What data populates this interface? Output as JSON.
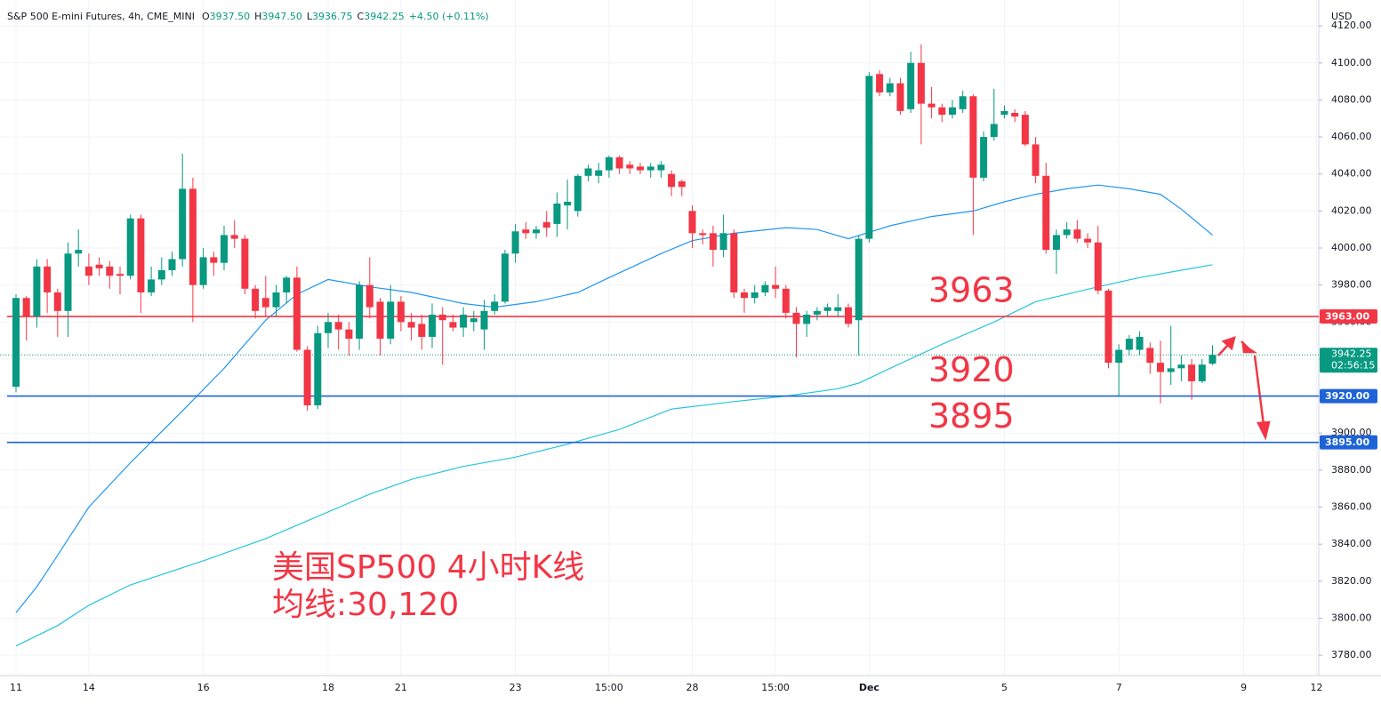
{
  "chart_data": {
    "type": "candlestick",
    "title": "S&P 500 E-mini Futures, 4h, CME_MINI",
    "ohlc_labels": [
      {
        "key": "O",
        "value": "3937.50"
      },
      {
        "key": "H",
        "value": "3947.50"
      },
      {
        "key": "L",
        "value": "3936.75"
      },
      {
        "key": "C",
        "value": "3942.25"
      }
    ],
    "change": "+4.50 (+0.11%)",
    "currency": "USD",
    "categories": [
      "11",
      null,
      null,
      null,
      null,
      null,
      null,
      "14",
      null,
      null,
      null,
      null,
      null,
      null,
      null,
      null,
      null,
      null,
      "16",
      null,
      null,
      null,
      null,
      null,
      null,
      null,
      null,
      null,
      null,
      null,
      "18",
      null,
      null,
      null,
      null,
      null,
      null,
      "21",
      null,
      null,
      null,
      null,
      null,
      null,
      null,
      null,
      null,
      null,
      "23",
      null,
      null,
      null,
      null,
      null,
      null,
      null,
      null,
      "15:00",
      null,
      null,
      null,
      null,
      null,
      null,
      null,
      "28",
      null,
      null,
      null,
      null,
      null,
      null,
      null,
      "15:00",
      null,
      null,
      null,
      null,
      null,
      null,
      null,
      null,
      "Dec",
      null,
      null,
      null,
      null,
      null,
      null,
      null,
      null,
      null,
      null,
      null,
      null,
      "5",
      null,
      null,
      null,
      null,
      null,
      null,
      null,
      null,
      null,
      null,
      "7",
      null,
      null,
      null,
      null,
      null,
      null,
      null,
      null,
      null,
      null,
      null,
      "9",
      null,
      null,
      null,
      null,
      null,
      null,
      "12"
    ],
    "open": [
      3925,
      3973,
      3963,
      3990,
      3976,
      3966,
      3997,
      3990,
      3991,
      3990,
      3986,
      3985,
      4016,
      3976,
      3983,
      3988,
      3994,
      4032,
      3980,
      3995,
      3992,
      4007,
      4005,
      3978,
      3973,
      3968,
      3976,
      3984,
      3945,
      3915,
      3954,
      3960,
      3956,
      3951,
      3980,
      3971,
      3951,
      3971,
      3960,
      3959,
      3952,
      3964,
      3960,
      3957,
      3960,
      3956,
      3966,
      3971,
      3997,
      4010,
      4008,
      4014,
      4013,
      4023,
      4020,
      4039,
      4039,
      4042,
      4049,
      4045,
      4044,
      4042,
      4042,
      4040,
      4036,
      4020,
      4008,
      4008,
      3999,
      4008,
      3976,
      3973,
      3976,
      3980,
      3978,
      3965,
      3959,
      3964,
      3966,
      3966,
      3968,
      3961,
      4005,
      4094,
      4084,
      4089,
      4075,
      4100,
      4078,
      4076,
      4072,
      4075,
      4082,
      4038,
      4060,
      4072,
      4073,
      4072,
      4056,
      4039,
      3999,
      4007,
      4010,
      4005,
      4003,
      3977,
      3938,
      3945,
      3945,
      3946,
      3938,
      3933,
      3935,
      3937,
      3928,
      3937.5,
      null,
      null,
      null,
      null,
      null,
      null,
      null,
      null,
      null,
      null
    ],
    "high": [
      3975,
      3974,
      3994,
      3994,
      3978,
      4003,
      4010,
      3997,
      3995,
      3993,
      3990,
      4018,
      4018,
      3990,
      3995,
      3998,
      4051,
      4038,
      4000,
      3998,
      4012,
      4015,
      4007,
      3980,
      3985,
      3980,
      3985,
      3990,
      3947,
      3958,
      3965,
      3964,
      3960,
      3982,
      3995,
      3973,
      3980,
      3974,
      3965,
      3964,
      3970,
      3968,
      3964,
      3968,
      3966,
      3972,
      3975,
      3999,
      4013,
      4014,
      4012,
      4020,
      4030,
      4037,
      4040,
      4045,
      4046,
      4050,
      4050,
      4047,
      4046,
      4046,
      4047,
      4042,
      4037,
      4023,
      4010,
      4012,
      4018,
      4010,
      3978,
      3980,
      3982,
      3990,
      3980,
      3968,
      3966,
      3968,
      3970,
      3975,
      3970,
      4007,
      4095,
      4096,
      4092,
      4092,
      4106,
      4110,
      4087,
      4078,
      4080,
      4085,
      4083,
      4063,
      4086,
      4077,
      4075,
      4074,
      4060,
      4046,
      4010,
      4014,
      4015,
      4008,
      4012,
      3978,
      3948,
      3953,
      3955,
      3949,
      3950,
      3958,
      3942,
      3940,
      3940,
      3947.5,
      null,
      null,
      null,
      null,
      null,
      null,
      null,
      null,
      null,
      null
    ],
    "low": [
      3922,
      3950,
      3957,
      3965,
      3952,
      3952,
      3990,
      3980,
      3985,
      3978,
      3975,
      3983,
      3965,
      3974,
      3980,
      3985,
      3990,
      3960,
      3978,
      3985,
      3988,
      4000,
      3975,
      3962,
      3963,
      3963,
      3970,
      3944,
      3912,
      3913,
      3946,
      3945,
      3942,
      3945,
      3962,
      3942,
      3948,
      3955,
      3950,
      3945,
      3946,
      3937,
      3955,
      3952,
      3955,
      3945,
      3964,
      3970,
      3992,
      4005,
      4005,
      4006,
      4006,
      4010,
      4017,
      4036,
      4035,
      4038,
      4040,
      4040,
      4040,
      4038,
      4038,
      4028,
      4028,
      4000,
      4002,
      3990,
      3995,
      3973,
      3965,
      3970,
      3974,
      3973,
      3962,
      3941,
      3952,
      3961,
      3963,
      3963,
      3957,
      3942,
      4003,
      4082,
      4082,
      4072,
      4073,
      4056,
      4070,
      4068,
      4070,
      4073,
      4007,
      4036,
      4058,
      4070,
      4068,
      4055,
      4035,
      3997,
      3986,
      4005,
      4003,
      4000,
      3975,
      3935,
      3920,
      3942,
      3942,
      3932,
      3916,
      3926,
      3928,
      3918,
      3927,
      3936.75,
      null,
      null,
      null,
      null,
      null,
      null,
      null,
      null,
      null,
      null
    ],
    "close": [
      3973,
      3963,
      3990,
      3976,
      3966,
      3997,
      3999,
      3985,
      3989,
      3985,
      3985,
      4016,
      3976,
      3983,
      3988,
      3994,
      4032,
      3980,
      3995,
      3992,
      4007,
      4005,
      3978,
      3966,
      3968,
      3976,
      3984,
      3945,
      3915,
      3954,
      3960,
      3956,
      3951,
      3980,
      3968,
      3951,
      3971,
      3960,
      3957,
      3952,
      3964,
      3961,
      3957,
      3964,
      3962,
      3966,
      3971,
      3997,
      4009,
      4008,
      4010,
      4011,
      4024,
      4025,
      4039,
      4043,
      4042,
      4049,
      4043,
      4043,
      4042,
      4044,
      4045,
      4033,
      4033,
      4008,
      4007,
      3999,
      4008,
      3976,
      3973,
      3976,
      3980,
      3978,
      3965,
      3959,
      3964,
      3966,
      3968,
      3968,
      3959,
      4005,
      4093,
      4084,
      4089,
      4074,
      4100,
      4078,
      4076,
      4072,
      4076,
      4082,
      4038,
      4060,
      4067,
      4074,
      4071,
      4056,
      4039,
      3999,
      4007,
      4010,
      4005,
      4003,
      3977,
      3938,
      3945,
      3951,
      3952,
      3938,
      3933,
      3935,
      3937,
      3928,
      3937,
      3942.25,
      null,
      null,
      null,
      null,
      null,
      null,
      null,
      null,
      null,
      null
    ],
    "up_color": "#089981",
    "down_color": "#f23645",
    "ylim": [
      3769,
      4134
    ],
    "yticks": [
      {
        "value": 3780,
        "label": "3780.00"
      },
      {
        "value": 3800,
        "label": "3800.00"
      },
      {
        "value": 3820,
        "label": "3820.00"
      },
      {
        "value": 3840,
        "label": "3840.00"
      },
      {
        "value": 3860,
        "label": "3860.00"
      },
      {
        "value": 3880,
        "label": "3880.00"
      },
      {
        "value": 3900,
        "label": "3900.00"
      },
      {
        "value": 3920,
        "label": "3920.00"
      },
      {
        "value": 3940,
        "label": "3940.00"
      },
      {
        "value": 3960,
        "label": "3960.00"
      },
      {
        "value": 3980,
        "label": "3980.00"
      },
      {
        "value": 4000,
        "label": "4000.00"
      },
      {
        "value": 4020,
        "label": "4020.00"
      },
      {
        "value": 4040,
        "label": "4040.00"
      },
      {
        "value": 4060,
        "label": "4060.00"
      },
      {
        "value": 4080,
        "label": "4080.00"
      },
      {
        "value": 4100,
        "label": "4100.00"
      },
      {
        "value": 4120,
        "label": "4120.00"
      }
    ],
    "grid": true,
    "moving_averages": [
      {
        "color": "#2196f3",
        "x": [
          0,
          2,
          4,
          7,
          11,
          16,
          20,
          24,
          27,
          30,
          34,
          38,
          43,
          46,
          50,
          54,
          57,
          62,
          65,
          69,
          74,
          77,
          80,
          84,
          88,
          92,
          95,
          98,
          101,
          104,
          107,
          110,
          112,
          115
        ],
        "values": [
          3803,
          3817,
          3834,
          3860,
          3884,
          3912,
          3935,
          3961,
          3975,
          3983,
          3979,
          3976,
          3970,
          3968,
          3971,
          3976,
          3984,
          3997,
          4004,
          4008,
          4011,
          4010,
          4005,
          4012,
          4017,
          4020,
          4025,
          4029,
          4032,
          4034,
          4032,
          4029,
          4021,
          4007
        ]
      },
      {
        "color": "#26c6da",
        "x": [
          0,
          4,
          7,
          11,
          18,
          24,
          29,
          34,
          38,
          43,
          48,
          53,
          58,
          63,
          69,
          74,
          79,
          81,
          84,
          89,
          94,
          98,
          104,
          108,
          112,
          115
        ],
        "values": [
          3785,
          3796,
          3807,
          3818,
          3831,
          3843,
          3855,
          3867,
          3875,
          3882,
          3887,
          3894,
          3902,
          3913,
          3917,
          3920,
          3924,
          3927,
          3935,
          3948,
          3960,
          3971,
          3979,
          3984,
          3988,
          3991
        ]
      }
    ],
    "levels": [
      {
        "value": 3963,
        "label": "3963.00",
        "annotation": "3963",
        "color": "#f23645"
      },
      {
        "value": 3920,
        "label": "3920.00",
        "annotation": "3920",
        "color": "#1e63d6"
      },
      {
        "value": 3895,
        "label": "3895.00",
        "annotation": "3895",
        "color": "#1e63d6"
      }
    ],
    "annotation_color": "#f23645",
    "last_price": {
      "value": 3942.25,
      "label": "3942.25",
      "countdown": "02:56:15",
      "color": "#089981"
    },
    "annotations": [
      "美国SP500 4小时K线",
      "均线:30,120"
    ]
  }
}
